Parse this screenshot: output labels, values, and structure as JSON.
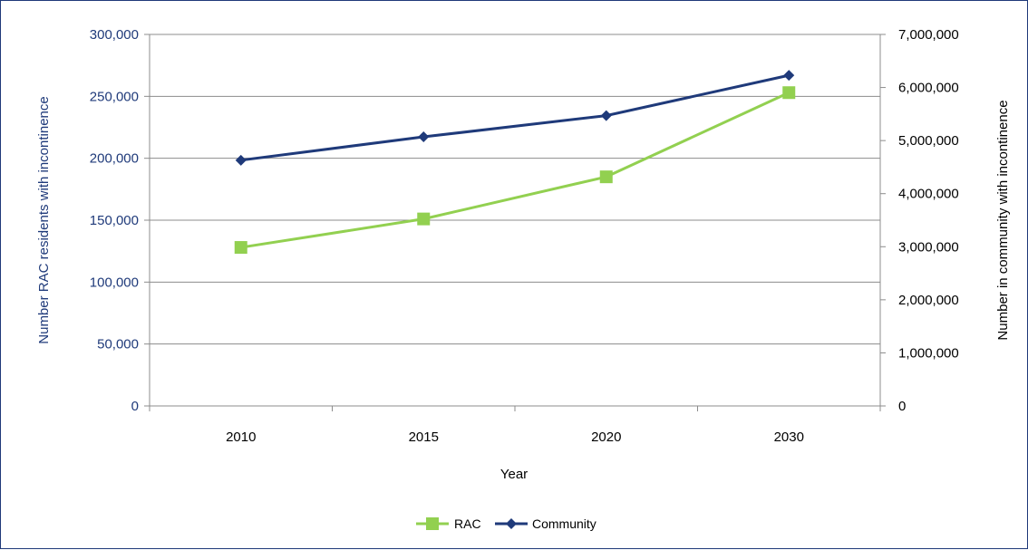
{
  "chart_data": {
    "type": "line",
    "categories": [
      "2010",
      "2015",
      "2020",
      "2030"
    ],
    "xlabel": "Year",
    "ylabel_left": "Number RAC residents with incontinence",
    "ylabel_right": "Number in community with incontinence",
    "ylim_left": [
      0,
      300000
    ],
    "ylim_right": [
      0,
      7000000
    ],
    "yticks_left": [
      "0",
      "50,000",
      "100,000",
      "150,000",
      "200,000",
      "250,000",
      "300,000"
    ],
    "yticks_right": [
      "0",
      "1,000,000",
      "2,000,000",
      "3,000,000",
      "4,000,000",
      "5,000,000",
      "6,000,000",
      "7,000,000"
    ],
    "grid": true,
    "legend_position": "bottom",
    "series": [
      {
        "name": "RAC",
        "axis": "left",
        "color": "#92d050",
        "marker": "square",
        "values": [
          128000,
          151000,
          185000,
          253000
        ]
      },
      {
        "name": "Community",
        "axis": "right",
        "color": "#1f3a7a",
        "marker": "diamond",
        "values": [
          4630000,
          5070000,
          5470000,
          6230000
        ]
      }
    ],
    "colors": {
      "left_axis_text": "#1f3a7a",
      "right_axis_text": "#000000",
      "grid": "#8c8c8c"
    }
  }
}
